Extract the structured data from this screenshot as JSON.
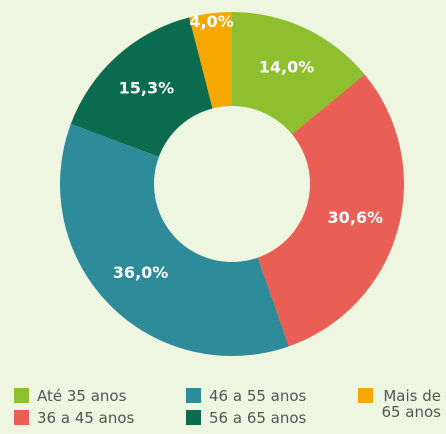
{
  "chart_data": {
    "type": "pie",
    "categories": [
      "Até 35 anos",
      "36 a 45 anos",
      "46 a 55 anos",
      "56 a 65 anos",
      "Mais de 65 anos"
    ],
    "values": [
      14.0,
      30.6,
      36.0,
      15.3,
      4.0
    ],
    "value_labels": [
      "14,0%",
      "30,6%",
      "36,0%",
      "15,3%",
      "4,0%"
    ],
    "colors": [
      "#8dbf2e",
      "#ea5f55",
      "#2e8b9a",
      "#0a6b4f",
      "#f5a800"
    ]
  }
}
